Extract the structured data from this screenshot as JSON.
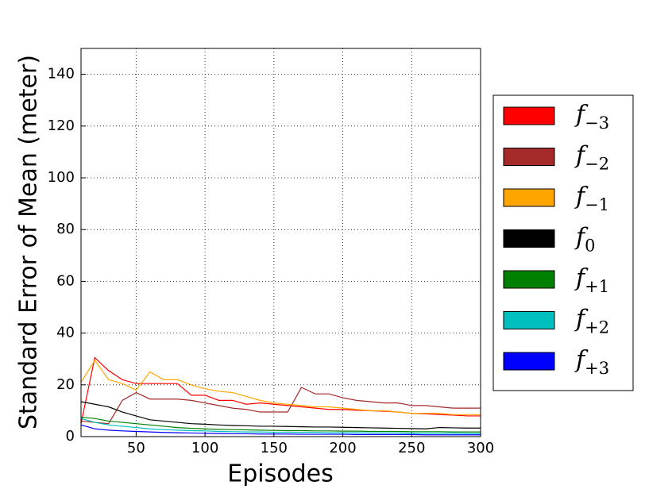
{
  "chart_data": {
    "type": "line",
    "xlabel": "Episodes",
    "ylabel": "Standard Error of Mean (meter)",
    "x": [
      10,
      20,
      30,
      40,
      50,
      60,
      70,
      80,
      90,
      100,
      110,
      120,
      130,
      140,
      150,
      160,
      170,
      180,
      190,
      200,
      210,
      220,
      230,
      240,
      250,
      260,
      270,
      280,
      290,
      300
    ],
    "xlim": [
      10,
      300
    ],
    "ylim": [
      0,
      150
    ],
    "xticks": [
      50,
      100,
      150,
      200,
      250,
      300
    ],
    "yticks": [
      0,
      20,
      40,
      60,
      80,
      100,
      120,
      140
    ],
    "grid": true,
    "legend": "right",
    "series": [
      {
        "name": "f−3",
        "color": "#ff0000",
        "values": [
          5,
          30.5,
          25.5,
          22,
          20.5,
          20.5,
          20.5,
          20.5,
          16,
          16,
          14,
          14,
          12.5,
          13,
          12.5,
          12,
          11.5,
          11,
          10.5,
          10.5,
          10.2,
          10,
          9.8,
          9.5,
          9,
          8.8,
          8.5,
          8.3,
          8,
          8
        ]
      },
      {
        "name": "f−2",
        "color": "#a52a2a",
        "values": [
          6,
          5.5,
          5,
          14,
          17,
          14.5,
          14.5,
          14.5,
          14,
          13,
          12,
          11,
          10.5,
          9.5,
          9.5,
          9.5,
          19,
          16.5,
          16.5,
          15,
          14,
          13.5,
          13,
          13,
          12,
          12,
          11.5,
          11,
          11,
          11
        ]
      },
      {
        "name": "f−1",
        "color": "#ffa500",
        "values": [
          21,
          29.5,
          22,
          20.5,
          18,
          25,
          22,
          22,
          20,
          18.5,
          17.5,
          17,
          15.5,
          14,
          13,
          12.5,
          12,
          11.5,
          11.5,
          11,
          10.5,
          10,
          10,
          9.5,
          9,
          9,
          9,
          8.5,
          8.5,
          8.5
        ]
      },
      {
        "name": "f0",
        "color": "#000000",
        "values": [
          13.5,
          12.5,
          11.5,
          9.5,
          8,
          6.5,
          6,
          5.5,
          5,
          4.8,
          4.5,
          4.3,
          4.2,
          4,
          4,
          3.9,
          3.8,
          3.7,
          3.7,
          3.6,
          3.5,
          3.4,
          3.3,
          3.2,
          3.1,
          3,
          3.5,
          3.4,
          3.3,
          3.3
        ]
      },
      {
        "name": "f+1",
        "color": "#008000",
        "values": [
          7.5,
          7,
          6,
          5.5,
          5,
          4.5,
          4,
          3.5,
          3.2,
          3,
          2.8,
          2.7,
          2.6,
          2.5,
          2.4,
          2.3,
          2.3,
          2.2,
          2.2,
          2.1,
          2.1,
          2,
          2,
          2,
          1.9,
          1.9,
          1.9,
          1.8,
          1.8,
          1.8
        ]
      },
      {
        "name": "f+2",
        "color": "#00bfbf",
        "values": [
          7,
          5.5,
          4.5,
          4,
          3.5,
          3,
          2.7,
          2.5,
          2.3,
          2.2,
          2,
          1.9,
          1.8,
          1.8,
          1.7,
          1.7,
          1.6,
          1.6,
          1.5,
          1.5,
          1.5,
          1.4,
          1.4,
          1.4,
          1.3,
          1.3,
          1.3,
          1.3,
          1.2,
          1.2
        ]
      },
      {
        "name": "f+3",
        "color": "#0000ff",
        "values": [
          4.5,
          3,
          2.5,
          2.2,
          2,
          1.8,
          1.6,
          1.5,
          1.4,
          1.3,
          1.2,
          1.1,
          1.1,
          1,
          1,
          1,
          0.9,
          0.9,
          0.9,
          0.9,
          0.8,
          0.8,
          0.8,
          0.8,
          0.8,
          0.7,
          0.7,
          0.7,
          0.7,
          0.7
        ]
      }
    ]
  }
}
